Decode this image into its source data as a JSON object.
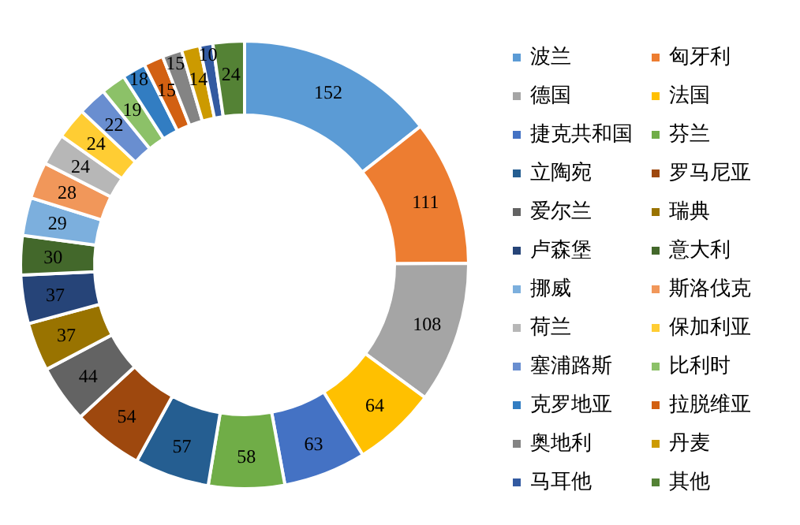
{
  "chart_data": {
    "type": "donut",
    "categories": [
      "波兰",
      "匈牙利",
      "德国",
      "法国",
      "捷克共和国",
      "芬兰",
      "立陶宛",
      "罗马尼亚",
      "爱尔兰",
      "瑞典",
      "卢森堡",
      "意大利",
      "挪威",
      "斯洛伐克",
      "荷兰",
      "保加利亚",
      "塞浦路斯",
      "比利时",
      "克罗地亚",
      "拉脱维亚",
      "奥地利",
      "丹麦",
      "马耳他",
      "其他"
    ],
    "values": [
      152,
      111,
      108,
      64,
      63,
      58,
      57,
      54,
      44,
      37,
      37,
      30,
      29,
      28,
      24,
      24,
      22,
      19,
      18,
      15,
      15,
      14,
      10,
      24
    ],
    "colors": [
      "#5b9bd5",
      "#ed7d31",
      "#a5a5a5",
      "#ffc000",
      "#4472c4",
      "#70ad47",
      "#255e91",
      "#9e480e",
      "#636363",
      "#997300",
      "#264478",
      "#43682b",
      "#7cafdd",
      "#f1975a",
      "#b7b7b7",
      "#ffcd33",
      "#698ed0",
      "#8cc168",
      "#327dc2",
      "#d26012",
      "#848484",
      "#cc9a00",
      "#335aa1",
      "#548235"
    ],
    "data_labels": true,
    "legend": "right"
  }
}
